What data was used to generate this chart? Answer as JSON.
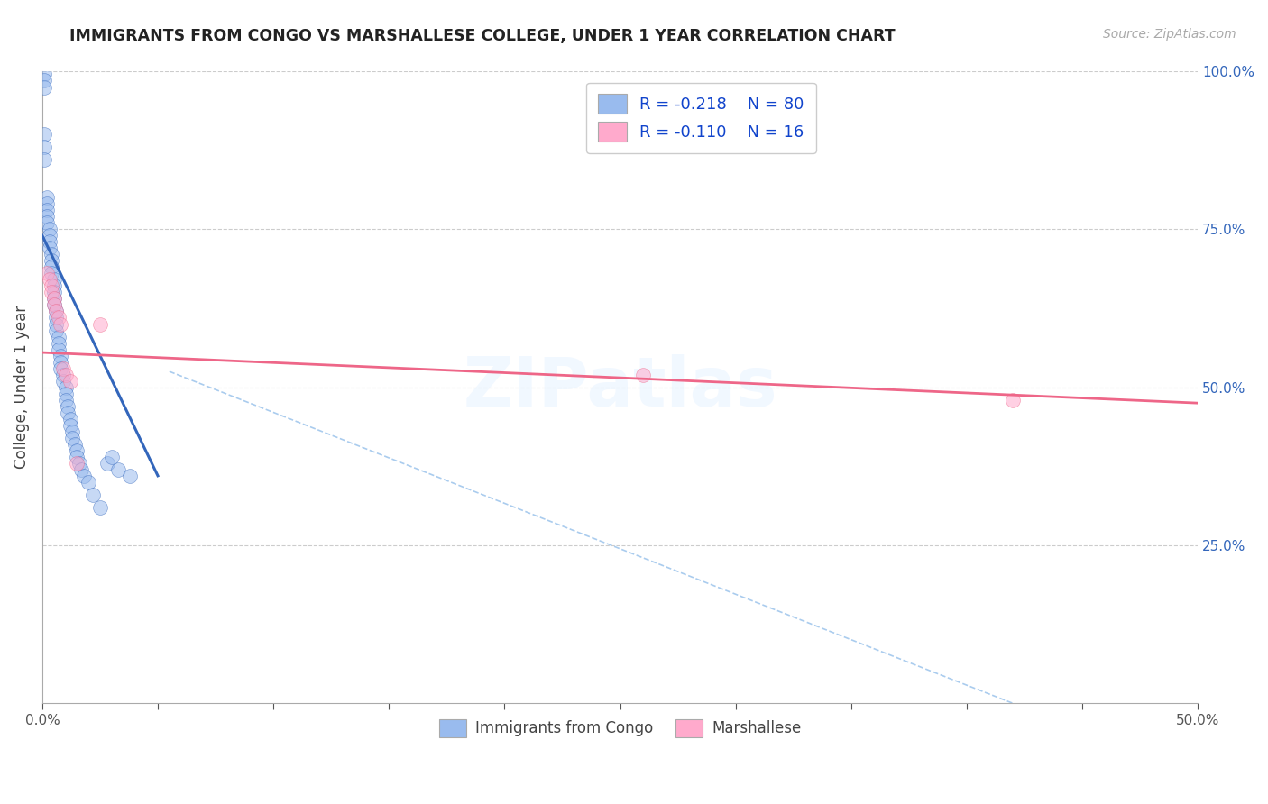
{
  "title": "IMMIGRANTS FROM CONGO VS MARSHALLESE COLLEGE, UNDER 1 YEAR CORRELATION CHART",
  "source_text": "Source: ZipAtlas.com",
  "ylabel": "College, Under 1 year",
  "x_min": 0.0,
  "x_max": 0.5,
  "y_min": 0.0,
  "y_max": 1.0,
  "x_ticks": [
    0.0,
    0.05,
    0.1,
    0.15,
    0.2,
    0.25,
    0.3,
    0.35,
    0.4,
    0.45,
    0.5
  ],
  "x_tick_labels": [
    "0.0%",
    "",
    "",
    "",
    "",
    "",
    "",
    "",
    "",
    "",
    "50.0%"
  ],
  "y_ticks_right": [
    0.25,
    0.5,
    0.75,
    1.0
  ],
  "y_tick_labels_right": [
    "25.0%",
    "50.0%",
    "75.0%",
    "100.0%"
  ],
  "legend_r1": "-0.218",
  "legend_n1": "80",
  "legend_r2": "-0.110",
  "legend_n2": "16",
  "color_blue": "#99BBEE",
  "color_pink": "#FFAACC",
  "color_blue_line": "#3366BB",
  "color_pink_line": "#EE6688",
  "color_diag_line": "#AACCEE",
  "watermark": "ZIPatlas",
  "legend_label1": "Immigrants from Congo",
  "legend_label2": "Marshallese",
  "blue_dots_x": [
    0.001,
    0.001,
    0.001,
    0.001,
    0.001,
    0.001,
    0.002,
    0.002,
    0.002,
    0.002,
    0.002,
    0.003,
    0.003,
    0.003,
    0.003,
    0.004,
    0.004,
    0.004,
    0.004,
    0.005,
    0.005,
    0.005,
    0.005,
    0.005,
    0.006,
    0.006,
    0.006,
    0.006,
    0.007,
    0.007,
    0.007,
    0.008,
    0.008,
    0.008,
    0.009,
    0.009,
    0.01,
    0.01,
    0.01,
    0.011,
    0.011,
    0.012,
    0.012,
    0.013,
    0.013,
    0.014,
    0.015,
    0.015,
    0.016,
    0.017,
    0.018,
    0.02,
    0.022,
    0.025,
    0.028,
    0.03,
    0.033,
    0.038
  ],
  "blue_dots_y": [
    0.995,
    0.985,
    0.975,
    0.9,
    0.88,
    0.86,
    0.8,
    0.79,
    0.78,
    0.77,
    0.76,
    0.75,
    0.74,
    0.73,
    0.72,
    0.71,
    0.7,
    0.69,
    0.68,
    0.67,
    0.66,
    0.65,
    0.64,
    0.63,
    0.62,
    0.61,
    0.6,
    0.59,
    0.58,
    0.57,
    0.56,
    0.55,
    0.54,
    0.53,
    0.52,
    0.51,
    0.5,
    0.49,
    0.48,
    0.47,
    0.46,
    0.45,
    0.44,
    0.43,
    0.42,
    0.41,
    0.4,
    0.39,
    0.38,
    0.37,
    0.36,
    0.35,
    0.33,
    0.31,
    0.38,
    0.39,
    0.37,
    0.36
  ],
  "pink_dots_x": [
    0.002,
    0.003,
    0.004,
    0.004,
    0.005,
    0.005,
    0.006,
    0.007,
    0.008,
    0.009,
    0.01,
    0.012,
    0.015,
    0.025,
    0.26,
    0.42
  ],
  "pink_dots_y": [
    0.68,
    0.67,
    0.66,
    0.65,
    0.64,
    0.63,
    0.62,
    0.61,
    0.6,
    0.53,
    0.52,
    0.51,
    0.38,
    0.6,
    0.52,
    0.48
  ],
  "blue_line_x0": 0.0,
  "blue_line_y0": 0.74,
  "blue_line_x1": 0.05,
  "blue_line_y1": 0.36,
  "pink_line_x0": 0.0,
  "pink_line_y0": 0.555,
  "pink_line_x1": 0.5,
  "pink_line_y1": 0.475,
  "diag_line_x0": 0.055,
  "diag_line_y0": 0.525,
  "diag_line_x1": 0.42,
  "diag_line_y1": 0.0
}
